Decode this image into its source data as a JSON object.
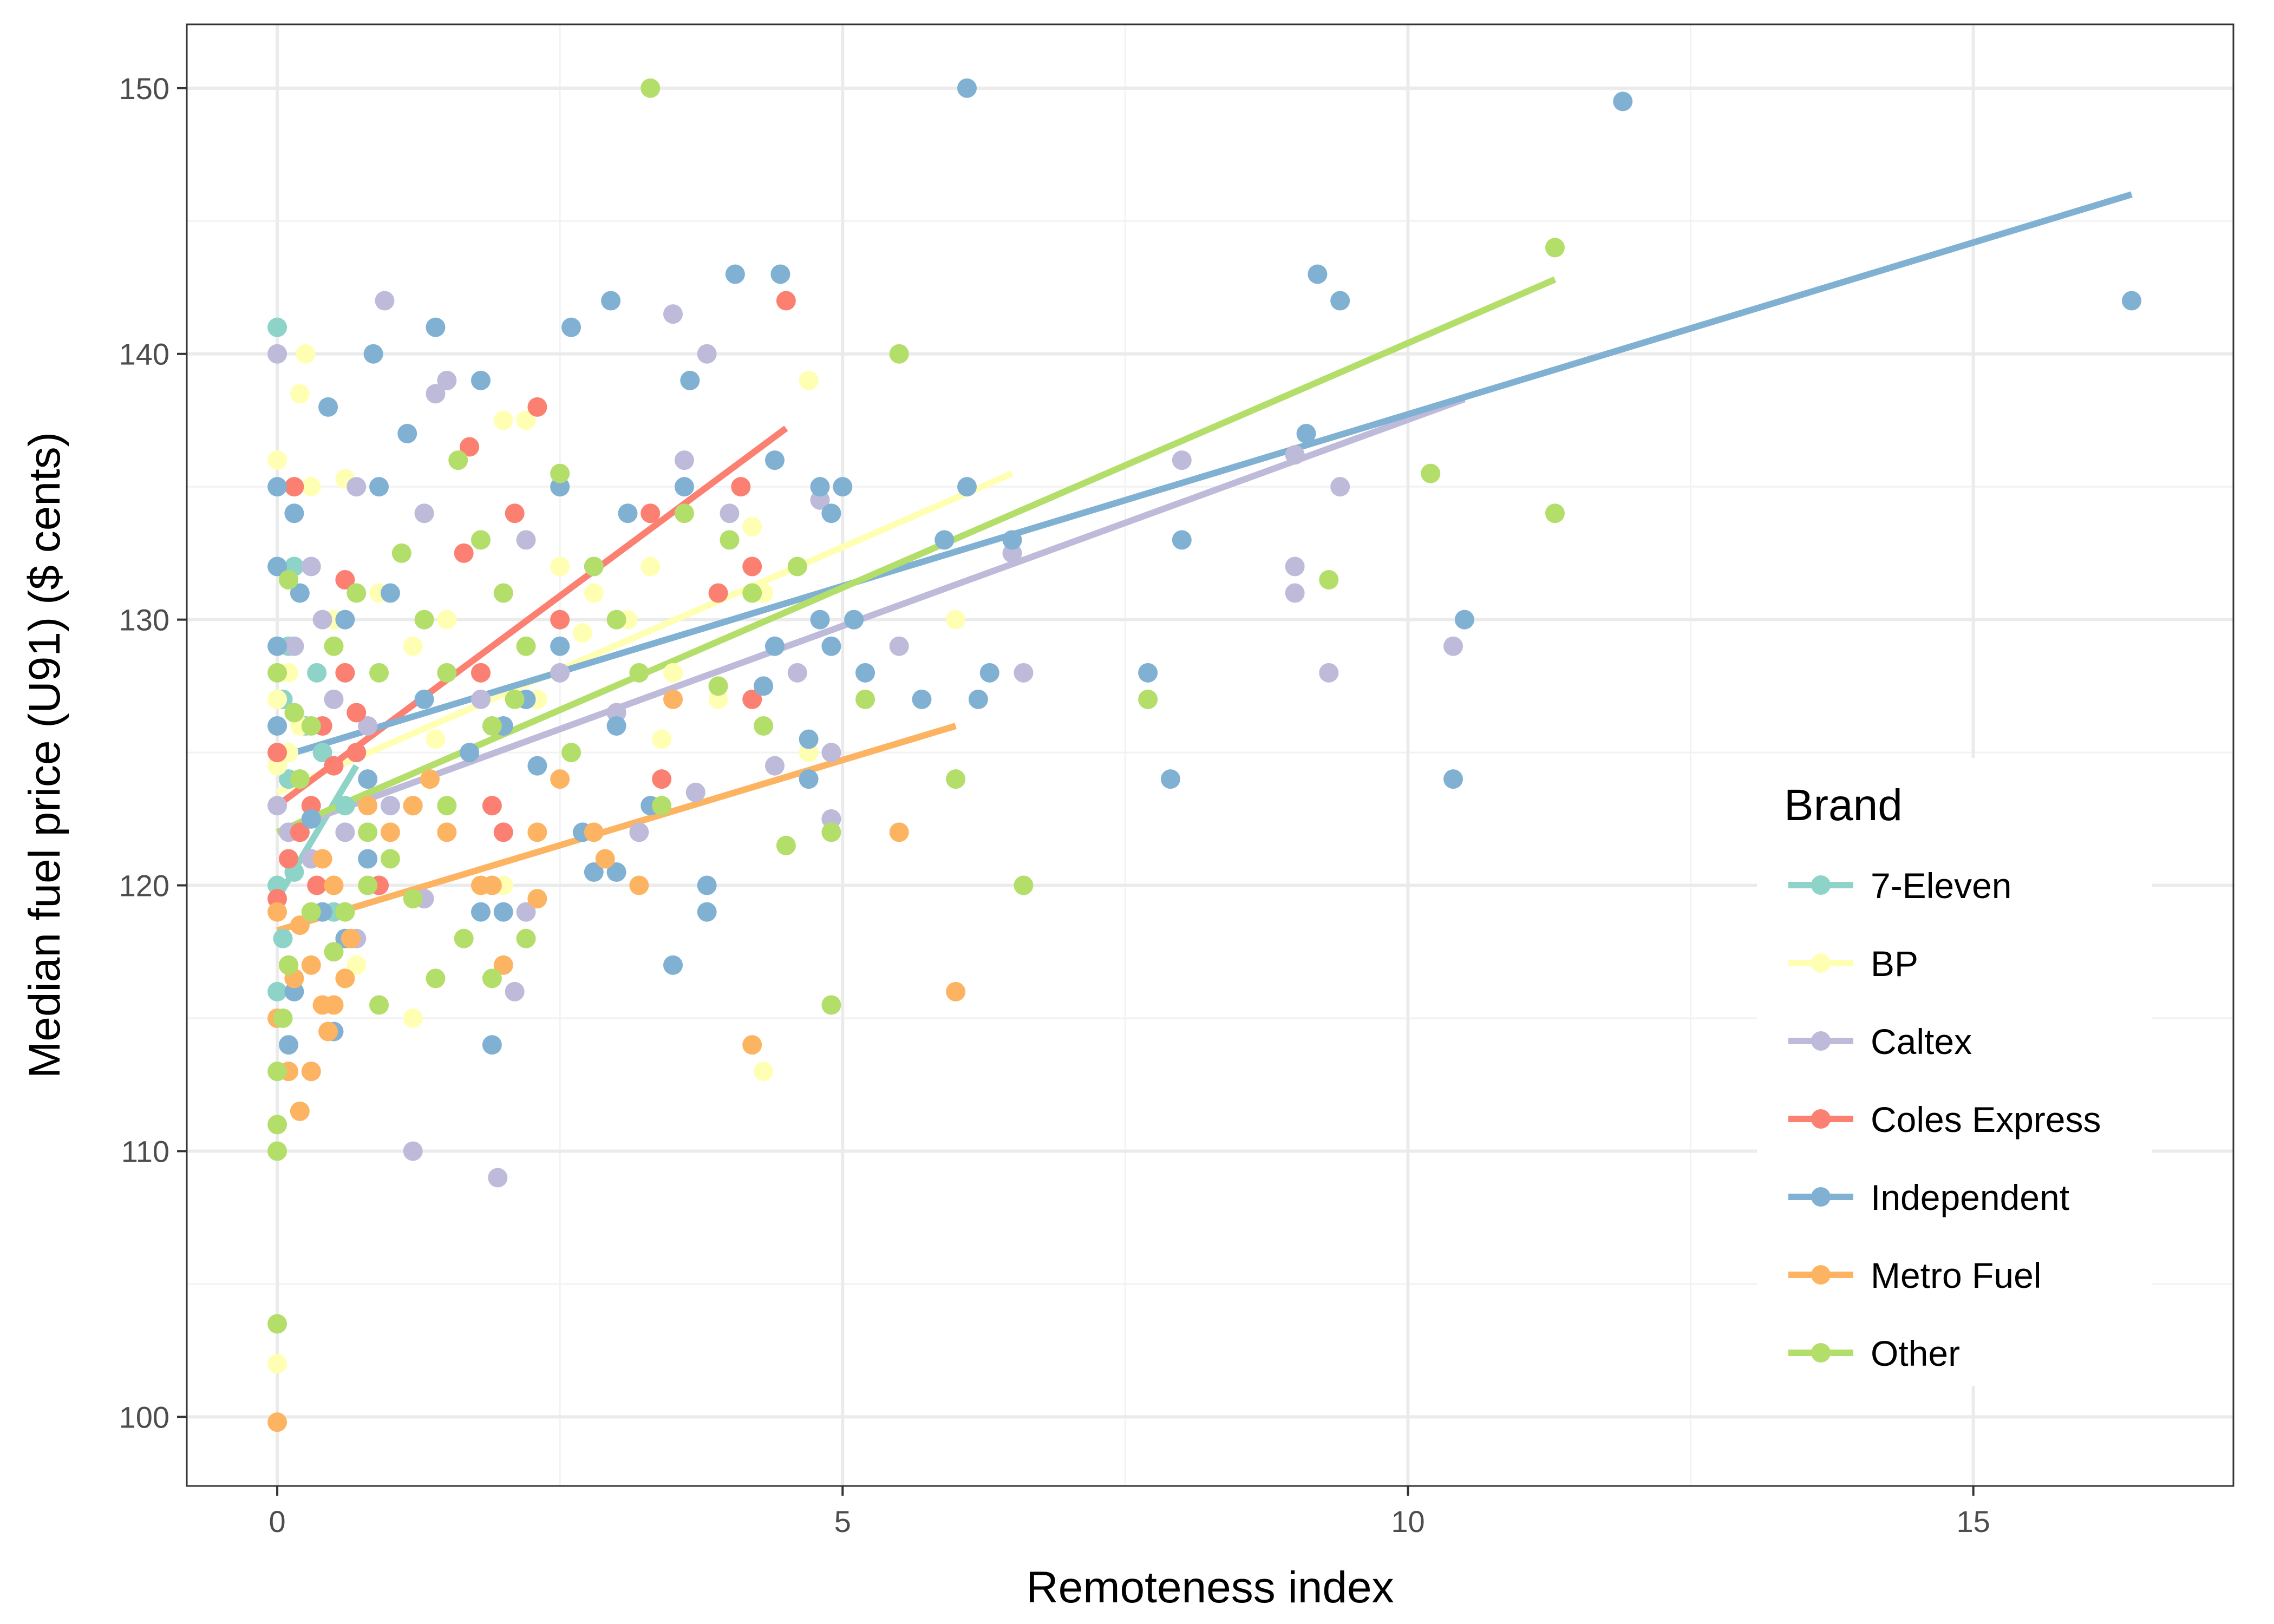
{
  "chart_data": {
    "type": "scatter",
    "xlabel": "Remoteness index",
    "ylabel": "Median fuel price (U91) ($ cents)",
    "xlim": [
      -0.8,
      17.3
    ],
    "ylim": [
      97.4,
      152.4
    ],
    "xticks": [
      0,
      5,
      10,
      15
    ],
    "yticks": [
      100,
      110,
      120,
      130,
      140,
      150
    ],
    "grid": true,
    "legend": {
      "title": "Brand",
      "position": "right"
    },
    "series": [
      {
        "name": "7-Eleven",
        "color": "#8DD3C7",
        "fit": {
          "x0": 0,
          "x1": 0.7,
          "y0": 119.5,
          "y1": 124.5
        },
        "points": [
          [
            0,
            141
          ],
          [
            0.15,
            132
          ],
          [
            0.05,
            127
          ],
          [
            0.1,
            124
          ],
          [
            0.2,
            122
          ],
          [
            0,
            120
          ],
          [
            0.05,
            118
          ],
          [
            0.3,
            121
          ],
          [
            0.4,
            125
          ],
          [
            0.6,
            123
          ],
          [
            0.1,
            129
          ],
          [
            0.25,
            126
          ],
          [
            0.5,
            119
          ],
          [
            0,
            116
          ],
          [
            0.35,
            128
          ],
          [
            0.15,
            120.5
          ]
        ]
      },
      {
        "name": "BP",
        "color": "#FFFFB3",
        "fit": {
          "x0": 0,
          "x1": 6.5,
          "y0": 123.5,
          "y1": 135.5
        },
        "points": [
          [
            0.25,
            140
          ],
          [
            0.2,
            138.5
          ],
          [
            0,
            136
          ],
          [
            0.3,
            135
          ],
          [
            0.6,
            135.3
          ],
          [
            2,
            137.5
          ],
          [
            2.2,
            137.5
          ],
          [
            4.7,
            139
          ],
          [
            0,
            127
          ],
          [
            0,
            124.5
          ],
          [
            0.1,
            128
          ],
          [
            0.2,
            126
          ],
          [
            0.5,
            130
          ],
          [
            0.9,
            131
          ],
          [
            1.2,
            129
          ],
          [
            1.5,
            130
          ],
          [
            1.8,
            133
          ],
          [
            2.5,
            132
          ],
          [
            2.8,
            131
          ],
          [
            3.1,
            130
          ],
          [
            3.5,
            128
          ],
          [
            3.9,
            127
          ],
          [
            4.2,
            133.5
          ],
          [
            4.3,
            131
          ],
          [
            3.4,
            125.5
          ],
          [
            4.7,
            125
          ],
          [
            6,
            130
          ],
          [
            3.3,
            132
          ],
          [
            0,
            110
          ],
          [
            0,
            102
          ],
          [
            1.2,
            115
          ],
          [
            4.3,
            113
          ],
          [
            0.7,
            117
          ],
          [
            2,
            120
          ],
          [
            0.1,
            125
          ],
          [
            1.4,
            125.5
          ],
          [
            2.3,
            127
          ],
          [
            2.7,
            129.5
          ]
        ]
      },
      {
        "name": "Caltex",
        "color": "#BEBADA",
        "fit": {
          "x0": 0,
          "x1": 10.5,
          "y0": 122,
          "y1": 138.3
        },
        "points": [
          [
            0,
            140
          ],
          [
            0.95,
            142
          ],
          [
            1.4,
            138.5
          ],
          [
            1.5,
            139
          ],
          [
            3.5,
            141.5
          ],
          [
            3.8,
            140
          ],
          [
            3.6,
            136
          ],
          [
            0.7,
            135
          ],
          [
            1.3,
            134
          ],
          [
            2.2,
            133
          ],
          [
            2.8,
            132
          ],
          [
            4,
            134
          ],
          [
            4.8,
            134.5
          ],
          [
            4.6,
            128
          ],
          [
            5.5,
            129
          ],
          [
            6.5,
            132.5
          ],
          [
            6.6,
            128
          ],
          [
            8,
            136
          ],
          [
            9,
            136.2
          ],
          [
            9,
            132
          ],
          [
            9,
            131
          ],
          [
            9.3,
            128
          ],
          [
            9.4,
            135
          ],
          [
            10.4,
            129
          ],
          [
            0.3,
            132
          ],
          [
            0.4,
            130
          ],
          [
            0.5,
            127
          ],
          [
            0.8,
            126
          ],
          [
            0.2,
            124
          ],
          [
            0.1,
            122
          ],
          [
            0,
            123
          ],
          [
            0.3,
            121
          ],
          [
            0.6,
            122
          ],
          [
            1,
            123
          ],
          [
            1.3,
            119.5
          ],
          [
            1.2,
            110
          ],
          [
            1.95,
            109
          ],
          [
            2.1,
            116
          ],
          [
            2.2,
            119
          ],
          [
            3.2,
            122
          ],
          [
            3.7,
            123.5
          ],
          [
            4.4,
            124.5
          ],
          [
            4.9,
            122.5
          ],
          [
            4.9,
            125
          ],
          [
            0.7,
            118
          ],
          [
            0.1,
            117
          ],
          [
            1.8,
            127
          ],
          [
            2.5,
            128
          ],
          [
            3,
            126.5
          ],
          [
            0.15,
            129
          ]
        ]
      },
      {
        "name": "Coles Express",
        "color": "#FB8072",
        "fit": {
          "x0": 0,
          "x1": 4.5,
          "y0": 123,
          "y1": 137.2
        },
        "points": [
          [
            0.15,
            135
          ],
          [
            1.7,
            136.5
          ],
          [
            2.3,
            138
          ],
          [
            4.5,
            142
          ],
          [
            2.1,
            134
          ],
          [
            3.3,
            134
          ],
          [
            4.1,
            135
          ],
          [
            1.65,
            132.5
          ],
          [
            3.9,
            131
          ],
          [
            4.2,
            132
          ],
          [
            4.2,
            127
          ],
          [
            0.6,
            131.5
          ],
          [
            0.6,
            128
          ],
          [
            0.7,
            126.5
          ],
          [
            0.4,
            126
          ],
          [
            0.5,
            124.5
          ],
          [
            0.3,
            123
          ],
          [
            0.2,
            122
          ],
          [
            0,
            119.5
          ],
          [
            0.1,
            121
          ],
          [
            0.35,
            120
          ],
          [
            0.9,
            120
          ],
          [
            1.9,
            123
          ],
          [
            2,
            122
          ],
          [
            3.4,
            124
          ],
          [
            0.7,
            125
          ],
          [
            1.8,
            128
          ],
          [
            2.5,
            130
          ],
          [
            0,
            125
          ]
        ]
      },
      {
        "name": "Independent",
        "color": "#80B1D3",
        "fit": {
          "x0": 0,
          "x1": 16.4,
          "y0": 124.8,
          "y1": 146
        },
        "points": [
          [
            6.1,
            150
          ],
          [
            11.9,
            149.5
          ],
          [
            16.4,
            142
          ],
          [
            9.2,
            143
          ],
          [
            9.4,
            142
          ],
          [
            4.05,
            143
          ],
          [
            4.45,
            143
          ],
          [
            2.95,
            142
          ],
          [
            1.4,
            141
          ],
          [
            2.6,
            141
          ],
          [
            0.85,
            140
          ],
          [
            3.65,
            139
          ],
          [
            1.8,
            139
          ],
          [
            0.45,
            138
          ],
          [
            1.15,
            137
          ],
          [
            0,
            135
          ],
          [
            5,
            135
          ],
          [
            6.1,
            135
          ],
          [
            9.1,
            137
          ],
          [
            7.7,
            128
          ],
          [
            8,
            133
          ],
          [
            6.2,
            127
          ],
          [
            6.3,
            128
          ],
          [
            4.4,
            129
          ],
          [
            5.2,
            128
          ],
          [
            5.7,
            127
          ],
          [
            5.9,
            133
          ],
          [
            6.5,
            133
          ],
          [
            10.4,
            124
          ],
          [
            10.5,
            130
          ],
          [
            7.9,
            124
          ],
          [
            3.5,
            117
          ],
          [
            3.8,
            119
          ],
          [
            3.8,
            120
          ],
          [
            4.7,
            124
          ],
          [
            4.7,
            125.5
          ],
          [
            0.2,
            131
          ],
          [
            0.6,
            130
          ],
          [
            1,
            131
          ],
          [
            1.3,
            127
          ],
          [
            2,
            126
          ],
          [
            2.5,
            129
          ],
          [
            3,
            126
          ],
          [
            3.3,
            123
          ],
          [
            2.8,
            120.5
          ],
          [
            3,
            120.5
          ],
          [
            2.7,
            122
          ],
          [
            2.2,
            127
          ],
          [
            1.8,
            119
          ],
          [
            2,
            119
          ],
          [
            1.9,
            114
          ],
          [
            0.3,
            113
          ],
          [
            0.1,
            114
          ],
          [
            0.5,
            114.5
          ],
          [
            0.15,
            116
          ],
          [
            0,
            126
          ],
          [
            0,
            129
          ],
          [
            0,
            132
          ],
          [
            0.15,
            134
          ],
          [
            0.9,
            135
          ],
          [
            2.5,
            135
          ],
          [
            3.1,
            134
          ],
          [
            3.6,
            135
          ],
          [
            4.4,
            136
          ],
          [
            4.8,
            135
          ],
          [
            4.9,
            134
          ],
          [
            4.8,
            130
          ],
          [
            5.1,
            130
          ],
          [
            4.9,
            129
          ],
          [
            4.3,
            127.5
          ],
          [
            0.3,
            122.5
          ],
          [
            0.4,
            119
          ],
          [
            0.6,
            118
          ],
          [
            0.8,
            121
          ],
          [
            1.2,
            123
          ],
          [
            0.8,
            124
          ],
          [
            1.7,
            125
          ],
          [
            2.3,
            124.5
          ]
        ]
      },
      {
        "name": "Metro Fuel",
        "color": "#FDB462",
        "fit": {
          "x0": 0,
          "x1": 6,
          "y0": 118.3,
          "y1": 126
        },
        "points": [
          [
            0,
            99.8
          ],
          [
            0,
            115
          ],
          [
            0.1,
            113
          ],
          [
            0.15,
            116.5
          ],
          [
            0.2,
            111.5
          ],
          [
            0.3,
            113
          ],
          [
            0.4,
            115.5
          ],
          [
            0.45,
            114.5
          ],
          [
            0.5,
            115.5
          ],
          [
            0.3,
            117
          ],
          [
            0.1,
            117
          ],
          [
            0,
            119
          ],
          [
            0.4,
            121
          ],
          [
            0.5,
            120
          ],
          [
            0.65,
            118
          ],
          [
            0.8,
            123
          ],
          [
            1,
            122
          ],
          [
            1.2,
            123
          ],
          [
            1.35,
            124
          ],
          [
            1.5,
            122
          ],
          [
            1.8,
            120
          ],
          [
            2,
            117
          ],
          [
            2.3,
            122
          ],
          [
            2.5,
            124
          ],
          [
            2.8,
            122
          ],
          [
            2.9,
            121
          ],
          [
            3.2,
            120
          ],
          [
            3.5,
            127
          ],
          [
            4.2,
            114
          ],
          [
            5.5,
            122
          ],
          [
            6,
            116
          ],
          [
            0.6,
            116.5
          ],
          [
            0.2,
            118.5
          ],
          [
            1.9,
            120
          ],
          [
            2.3,
            119.5
          ]
        ]
      },
      {
        "name": "Other",
        "color": "#B3DE69",
        "fit": {
          "x0": 0,
          "x1": 11.3,
          "y0": 122,
          "y1": 142.8
        },
        "points": [
          [
            3.3,
            150
          ],
          [
            11.3,
            144
          ],
          [
            5.5,
            140
          ],
          [
            10.2,
            135.5
          ],
          [
            11.3,
            134
          ],
          [
            9.3,
            131.5
          ],
          [
            7.7,
            127
          ],
          [
            6.6,
            120
          ],
          [
            6,
            124
          ],
          [
            4.9,
            122
          ],
          [
            4.9,
            115.5
          ],
          [
            4.5,
            121.5
          ],
          [
            5.2,
            127
          ],
          [
            0,
            103.5
          ],
          [
            0,
            110
          ],
          [
            0,
            111
          ],
          [
            0,
            113
          ],
          [
            0.05,
            115
          ],
          [
            0.1,
            117
          ],
          [
            0.3,
            119
          ],
          [
            0.5,
            117.5
          ],
          [
            0.6,
            119
          ],
          [
            0.8,
            120
          ],
          [
            1,
            121
          ],
          [
            1.2,
            119.5
          ],
          [
            1.4,
            116.5
          ],
          [
            1.65,
            118
          ],
          [
            1.9,
            116.5
          ],
          [
            2.2,
            118
          ],
          [
            0.9,
            115.5
          ],
          [
            0.8,
            122
          ],
          [
            0.2,
            124
          ],
          [
            0.3,
            126
          ],
          [
            0.5,
            129
          ],
          [
            0.7,
            131
          ],
          [
            0.9,
            128
          ],
          [
            1.1,
            132.5
          ],
          [
            1.3,
            130
          ],
          [
            1.5,
            128
          ],
          [
            1.6,
            136
          ],
          [
            1.8,
            133
          ],
          [
            2,
            131
          ],
          [
            2.2,
            129
          ],
          [
            2.5,
            135.5
          ],
          [
            2.8,
            132
          ],
          [
            3,
            130
          ],
          [
            3.2,
            128
          ],
          [
            3.6,
            134
          ],
          [
            4,
            133
          ],
          [
            4.2,
            131
          ],
          [
            4.3,
            126
          ],
          [
            4.6,
            132
          ],
          [
            3.9,
            127.5
          ],
          [
            3.4,
            123
          ],
          [
            2.6,
            125
          ],
          [
            1.9,
            126
          ],
          [
            1.5,
            123
          ],
          [
            2.1,
            127
          ],
          [
            0.1,
            131.5
          ],
          [
            0,
            128
          ],
          [
            0.15,
            126.5
          ]
        ]
      }
    ]
  }
}
